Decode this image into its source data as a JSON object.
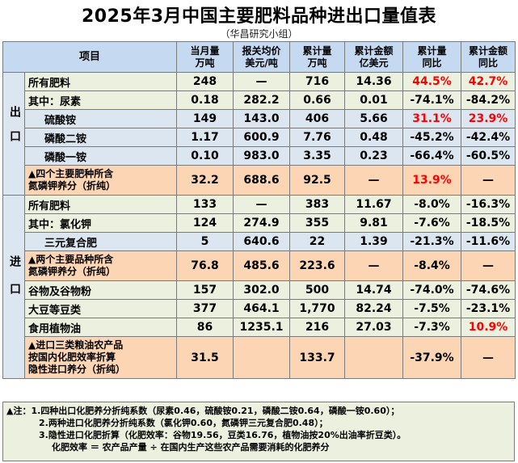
{
  "title": "2025年3月中国主要肥料品种进出口量值表",
  "subtitle": "（华昌研究小组）",
  "header": {
    "item": "项目",
    "c1": [
      "当月量",
      "万吨"
    ],
    "c2": [
      "报关均价",
      "美元/吨"
    ],
    "c3": [
      "累计量",
      "万吨"
    ],
    "c4": [
      "累计金额",
      "亿美元"
    ],
    "c5": [
      "累计量",
      "同比"
    ],
    "c6": [
      "累计金额",
      "同比"
    ]
  },
  "export_label": "出口",
  "import_label": "进口",
  "export_rows": [
    {
      "label": "所有肥料",
      "values": [
        "248",
        "—",
        "716",
        "14.36",
        "44.5%",
        "42.7%"
      ]
    },
    {
      "label": "其中：尿素",
      "values": [
        "0.18",
        "282.2",
        "0.66",
        "0.01",
        "-74.1%",
        "-84.2%"
      ]
    },
    {
      "label": "硫酸铵",
      "values": [
        "149",
        "143.0",
        "406",
        "5.66",
        "31.1%",
        "23.9%"
      ]
    },
    {
      "label": "磷酸二铵",
      "values": [
        "1.17",
        "600.9",
        "7.76",
        "0.48",
        "-45.2%",
        "-42.4%"
      ]
    },
    {
      "label": "磷酸一铵",
      "values": [
        "0.10",
        "983.0",
        "3.35",
        "0.23",
        "-66.4%",
        "-60.5%"
      ]
    },
    {
      "label": [
        "▲四个主要肥种所含",
        "氮磷钾养分（折纯）"
      ],
      "values": [
        "32.2",
        "688.6",
        "92.5",
        "—",
        "13.9%",
        "—"
      ]
    }
  ],
  "import_rows": [
    {
      "label": "所有肥料",
      "values": [
        "133",
        "—",
        "383",
        "11.67",
        "-8.0%",
        "-16.3%"
      ]
    },
    {
      "label": "其中：氯化钾",
      "values": [
        "124",
        "274.9",
        "355",
        "9.81",
        "-7.6%",
        "-18.5%"
      ]
    },
    {
      "label": "三元复合肥",
      "values": [
        "5",
        "640.6",
        "22",
        "1.39",
        "-21.3%",
        "-11.6%"
      ]
    },
    {
      "label": [
        "▲两个主要品种所含",
        "氮磷钾养分（折纯）"
      ],
      "values": [
        "76.8",
        "485.6",
        "223.6",
        "—",
        "-8.4%",
        "—"
      ]
    },
    {
      "label": "谷物及谷物粉",
      "values": [
        "157",
        "302.0",
        "500",
        "14.74",
        "-74.0%",
        "-74.6%"
      ]
    },
    {
      "label": "大豆等豆类",
      "values": [
        "377",
        "464.1",
        "1,770",
        "82.24",
        "-7.5%",
        "-23.1%"
      ]
    },
    {
      "label": "食用植物油",
      "values": [
        "86",
        "1235.1",
        "216",
        "27.03",
        "-7.3%",
        "10.9%"
      ]
    },
    {
      "label": [
        "▲进口三类粮油农产品",
        "按国内化肥效率折算",
        "隐性进口养分（折纯）"
      ],
      "values": [
        "31.5",
        "",
        "133.7",
        "",
        "-37.9%",
        "—"
      ]
    }
  ],
  "notes": [
    "▲注：1.四种出口化肥养分折纯系数（尿素0.46，硫酸铵0.21，磷酸二铵0.64，磷酸一铵0.60）；",
    "2.两种进口化肥养分折纯系数（氯化钾0.60，氮磷钾三元复合肥0.48）；",
    "3.隐性进口化肥折算（化肥效率：谷物19.56，豆类16.76，植物油按20%出油率折豆类）。",
    "化肥效率 ＝ 农产品产量 ÷ 在国内生产这些农产品需要消耗的化肥养分"
  ],
  "colors": {
    "header": "#c5d9f1",
    "green_row": "#ebf1de",
    "blue_row": "#dce6f1",
    "orange_row": "#fcd5b4",
    "positive": "#ff0000"
  }
}
